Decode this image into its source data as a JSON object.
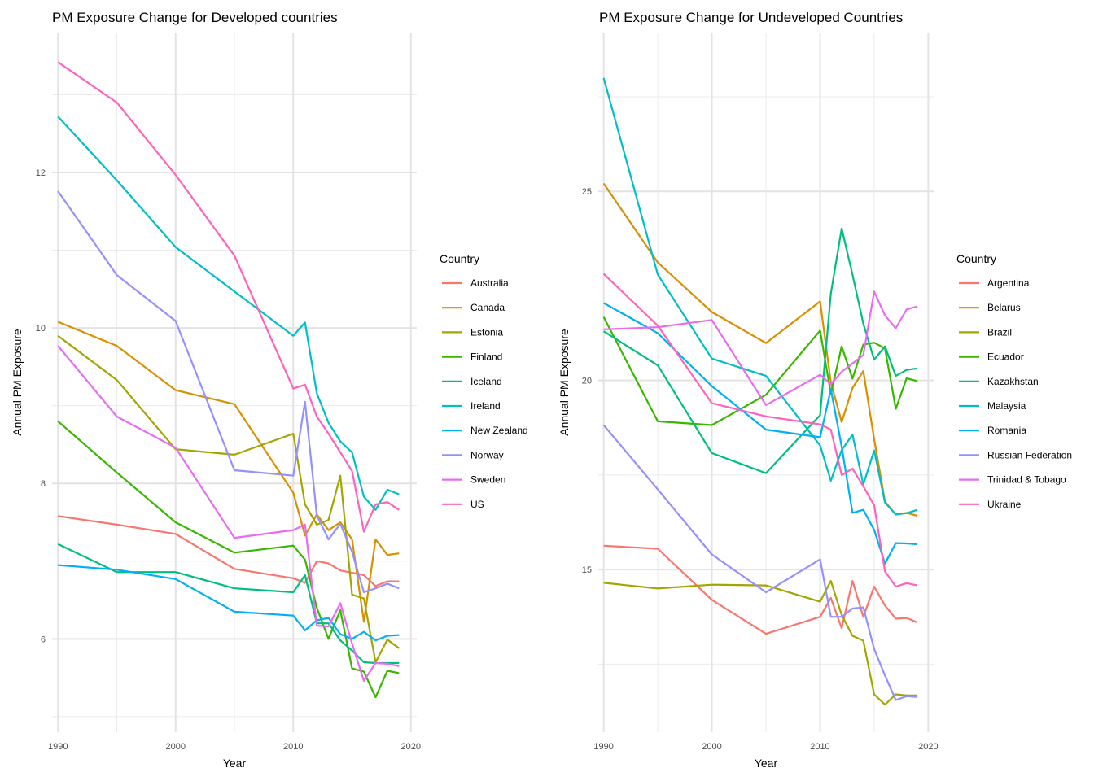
{
  "chart_data": [
    {
      "type": "line",
      "title": "PM Exposure Change for Developed countries",
      "xlabel": "Year",
      "ylabel": "Annual PM Exposure",
      "xlim": [
        1989.5,
        2020.5
      ],
      "ylim": [
        4.8,
        13.8
      ],
      "xticks": [
        1990,
        2000,
        2010,
        2020
      ],
      "yticks": [
        6,
        8,
        10,
        12
      ],
      "grid": true,
      "legend_title": "Country",
      "legend_position": "right",
      "x": [
        1990,
        1995,
        2000,
        2005,
        2010,
        2011,
        2012,
        2013,
        2014,
        2015,
        2016,
        2017,
        2018,
        2019
      ],
      "series": [
        {
          "name": "Australia",
          "color": "#F8766D",
          "values": [
            7.58,
            7.47,
            7.35,
            6.9,
            6.78,
            6.72,
            7.0,
            6.97,
            6.88,
            6.85,
            6.82,
            6.68,
            6.74,
            6.74
          ]
        },
        {
          "name": "Canada",
          "color": "#D89000",
          "values": [
            10.08,
            9.77,
            9.2,
            9.02,
            7.88,
            7.33,
            7.6,
            7.4,
            7.5,
            7.28,
            6.22,
            7.28,
            7.08,
            7.1
          ]
        },
        {
          "name": "Estonia",
          "color": "#A3A500",
          "values": [
            9.9,
            9.33,
            8.44,
            8.37,
            8.64,
            7.73,
            7.47,
            7.53,
            8.1,
            6.57,
            6.52,
            5.7,
            5.99,
            5.88
          ]
        },
        {
          "name": "Finland",
          "color": "#39B600",
          "values": [
            8.8,
            8.14,
            7.5,
            7.11,
            7.2,
            7.02,
            6.4,
            6.0,
            6.37,
            5.62,
            5.58,
            5.25,
            5.59,
            5.56
          ]
        },
        {
          "name": "Iceland",
          "color": "#00BF7D",
          "values": [
            7.22,
            6.86,
            6.86,
            6.65,
            6.6,
            6.82,
            6.2,
            6.2,
            5.98,
            5.85,
            5.7,
            5.69,
            5.69,
            5.69
          ]
        },
        {
          "name": "Ireland",
          "color": "#00BFC4",
          "values": [
            12.72,
            11.9,
            11.04,
            10.47,
            9.9,
            10.07,
            9.16,
            8.78,
            8.54,
            8.4,
            7.83,
            7.66,
            7.92,
            7.86
          ]
        },
        {
          "name": "New Zealand",
          "color": "#00B0F6",
          "values": [
            6.95,
            6.89,
            6.77,
            6.35,
            6.3,
            6.11,
            6.24,
            6.27,
            6.06,
            6.0,
            6.09,
            5.98,
            6.04,
            6.05
          ]
        },
        {
          "name": "Norway",
          "color": "#9590FF",
          "values": [
            11.76,
            10.68,
            10.09,
            8.17,
            8.1,
            9.05,
            7.59,
            7.28,
            7.48,
            7.12,
            6.6,
            6.65,
            6.71,
            6.65
          ]
        },
        {
          "name": "Sweden",
          "color": "#E76BF3",
          "values": [
            9.77,
            8.86,
            8.46,
            7.3,
            7.4,
            7.47,
            6.17,
            6.16,
            6.46,
            5.94,
            5.46,
            5.69,
            5.68,
            5.65
          ]
        },
        {
          "name": "US",
          "color": "#FF62BC",
          "values": [
            13.42,
            12.9,
            11.97,
            10.93,
            9.22,
            9.27,
            8.86,
            8.64,
            8.4,
            8.16,
            7.38,
            7.73,
            7.76,
            7.66
          ]
        }
      ]
    },
    {
      "type": "line",
      "title": "PM Exposure Change for Undeveloped Countries",
      "xlabel": "Year",
      "ylabel": "Annual PM Exposure",
      "xlim": [
        1989.5,
        2020.5
      ],
      "ylim": [
        10.7,
        29.2
      ],
      "xticks": [
        1990,
        2000,
        2010,
        2020
      ],
      "yticks": [
        15,
        20,
        25
      ],
      "grid": true,
      "legend_title": "Country",
      "legend_position": "right",
      "x": [
        1990,
        1995,
        2000,
        2005,
        2010,
        2011,
        2012,
        2013,
        2014,
        2015,
        2016,
        2017,
        2018,
        2019
      ],
      "series": [
        {
          "name": "Argentina",
          "color": "#F8766D",
          "values": [
            15.63,
            15.55,
            14.2,
            13.3,
            13.75,
            14.25,
            13.45,
            14.7,
            13.75,
            14.55,
            14.05,
            13.7,
            13.72,
            13.6
          ]
        },
        {
          "name": "Belarus",
          "color": "#D89000",
          "values": [
            25.21,
            23.12,
            21.81,
            20.99,
            22.09,
            19.95,
            18.9,
            19.8,
            20.25,
            18.45,
            16.8,
            16.45,
            16.5,
            16.42
          ]
        },
        {
          "name": "Brazil",
          "color": "#A3A500",
          "values": [
            14.65,
            14.5,
            14.6,
            14.58,
            14.15,
            14.7,
            13.8,
            13.25,
            13.12,
            11.7,
            11.43,
            11.7,
            11.67,
            11.67
          ]
        },
        {
          "name": "Ecuador",
          "color": "#39B600",
          "values": [
            21.68,
            18.92,
            18.82,
            19.62,
            21.32,
            19.65,
            20.9,
            20.05,
            20.95,
            21.0,
            20.85,
            19.25,
            20.06,
            19.98
          ]
        },
        {
          "name": "Kazakhstan",
          "color": "#00BF7D",
          "values": [
            21.3,
            20.4,
            18.08,
            17.55,
            19.08,
            22.3,
            24.02,
            22.8,
            21.5,
            20.55,
            20.9,
            20.12,
            20.28,
            20.32
          ]
        },
        {
          "name": "Malaysia",
          "color": "#00BFC4",
          "values": [
            28.0,
            22.8,
            20.58,
            20.12,
            18.28,
            17.35,
            18.16,
            18.57,
            17.25,
            18.15,
            16.77,
            16.46,
            16.49,
            16.58
          ]
        },
        {
          "name": "Romania",
          "color": "#00B0F6",
          "values": [
            22.05,
            21.25,
            19.85,
            18.7,
            18.5,
            19.77,
            18.25,
            16.5,
            16.58,
            16.05,
            15.16,
            15.7,
            15.69,
            15.67
          ]
        },
        {
          "name": "Russian Federation",
          "color": "#9590FF",
          "values": [
            18.82,
            17.12,
            15.4,
            14.4,
            15.27,
            13.75,
            13.75,
            13.97,
            14.0,
            12.9,
            12.2,
            11.55,
            11.65,
            11.63
          ]
        },
        {
          "name": "Trinidad & Tobago",
          "color": "#E76BF3",
          "values": [
            21.35,
            21.41,
            21.6,
            19.35,
            20.15,
            19.9,
            20.23,
            20.45,
            20.67,
            22.35,
            21.72,
            21.38,
            21.88,
            21.96
          ]
        },
        {
          "name": "Ukraine",
          "color": "#FF62BC",
          "values": [
            22.82,
            21.45,
            19.4,
            19.05,
            18.84,
            18.7,
            17.5,
            17.67,
            17.2,
            16.7,
            14.95,
            14.55,
            14.64,
            14.58
          ]
        }
      ]
    }
  ]
}
